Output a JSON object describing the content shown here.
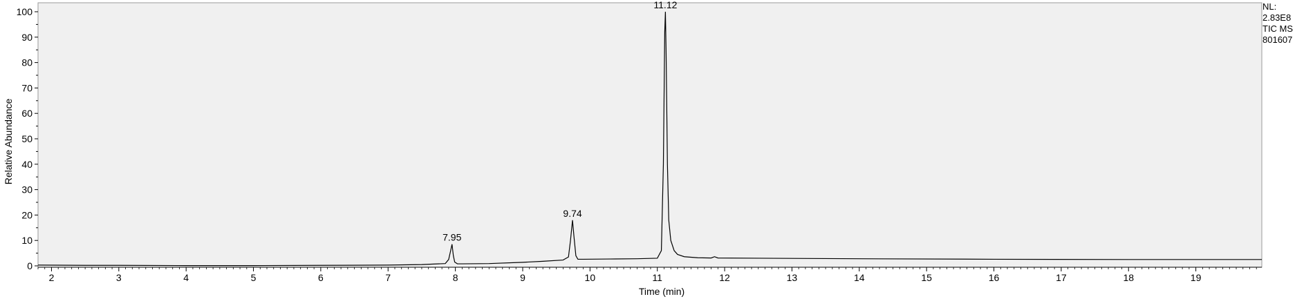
{
  "side_info": {
    "nl_label": "NL:",
    "nl_value": "2.83E8",
    "trace": "TIC  MS",
    "file": "801607"
  },
  "chart_data": {
    "type": "line",
    "title": "",
    "xlabel": "Time (min)",
    "ylabel": "Relative Abundance",
    "xlim": [
      1.8,
      19.98
    ],
    "ylim": [
      0,
      100
    ],
    "x_ticks": [
      2,
      3,
      4,
      5,
      6,
      7,
      8,
      9,
      10,
      11,
      12,
      13,
      14,
      15,
      16,
      17,
      18,
      19
    ],
    "y_ticks": [
      0,
      10,
      20,
      30,
      40,
      50,
      60,
      70,
      80,
      90,
      100
    ],
    "grid": false,
    "background": "#f0f0f0",
    "line_color": "#000000",
    "peak_annotations": [
      {
        "label": "7.95",
        "x": 7.95,
        "y": 8.5
      },
      {
        "label": "9.74",
        "x": 9.74,
        "y": 18
      },
      {
        "label": "11.12",
        "x": 11.12,
        "y": 100
      }
    ],
    "series": [
      {
        "x": [
          1.8,
          2.5,
          3.0,
          4.0,
          5.0,
          6.0,
          7.0,
          7.5,
          7.85,
          7.9,
          7.93,
          7.95,
          7.97,
          7.99,
          8.03,
          8.1,
          8.5,
          9.0,
          9.3,
          9.6,
          9.68,
          9.71,
          9.74,
          9.76,
          9.79,
          9.82,
          9.9,
          10.3,
          10.7,
          11.0,
          11.06,
          11.09,
          11.11,
          11.12,
          11.13,
          11.15,
          11.17,
          11.2,
          11.25,
          11.3,
          11.4,
          11.6,
          11.8,
          11.85,
          11.9,
          12.5,
          14.0,
          16.0,
          18.0,
          19.98
        ],
        "y": [
          0.3,
          0.2,
          0.2,
          0.1,
          0.1,
          0.2,
          0.3,
          0.5,
          0.9,
          2.5,
          6,
          8.5,
          4,
          1.5,
          0.8,
          0.8,
          0.9,
          1.4,
          1.8,
          2.3,
          3.5,
          10,
          18,
          12,
          4,
          2.6,
          2.6,
          2.7,
          2.8,
          3.0,
          6,
          40,
          92,
          100,
          85,
          40,
          18,
          10,
          6,
          4.5,
          3.6,
          3.2,
          3.1,
          3.6,
          3.1,
          3.0,
          2.8,
          2.6,
          2.5,
          2.5
        ]
      }
    ]
  }
}
